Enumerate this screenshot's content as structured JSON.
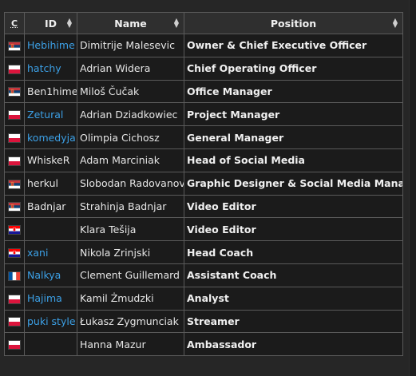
{
  "header": {
    "c": "C",
    "id": "ID",
    "name": "Name",
    "position": "Position"
  },
  "rows": [
    {
      "flag": "serbia",
      "id": "Hebihime",
      "id_link": true,
      "name": "Dimitrije Malesevic",
      "position": "Owner & Chief Executive Officer"
    },
    {
      "flag": "poland",
      "id": "hatchy",
      "id_link": true,
      "name": "Adrian Widera",
      "position": "Chief Operating Officer"
    },
    {
      "flag": "serbia",
      "id": "Ben1hime",
      "id_link": false,
      "name": "Miloš Čučak",
      "position": "Office Manager"
    },
    {
      "flag": "poland",
      "id": "Zetural",
      "id_link": true,
      "name": "Adrian Dziadkowiec",
      "position": "Project Manager"
    },
    {
      "flag": "poland",
      "id": "komedyja",
      "id_link": true,
      "name": "Olimpia Cichosz",
      "position": "General Manager"
    },
    {
      "flag": "poland",
      "id": "WhiskeR",
      "id_link": false,
      "name": "Adam Marciniak",
      "position": "Head of Social Media"
    },
    {
      "flag": "serbia",
      "id": "herkul",
      "id_link": false,
      "name": "Slobodan Radovanov",
      "position": "Graphic Designer & Social Media Manager"
    },
    {
      "flag": "serbia",
      "id": "Badnjar",
      "id_link": false,
      "name": "Strahinja Badnjar",
      "position": "Video Editor"
    },
    {
      "flag": "croatia",
      "id": "",
      "id_link": false,
      "name": "Klara Tešija",
      "position": "Video Editor"
    },
    {
      "flag": "croatia",
      "id": "xani",
      "id_link": true,
      "name": "Nikola Zrinjski",
      "position": "Head Coach"
    },
    {
      "flag": "france",
      "id": "Nalkya",
      "id_link": true,
      "name": "Clement Guillemard",
      "position": "Assistant Coach"
    },
    {
      "flag": "poland",
      "id": "Hajima",
      "id_link": true,
      "name": "Kamil Żmudzki",
      "position": "Analyst"
    },
    {
      "flag": "poland",
      "id": "puki style",
      "id_link": true,
      "name": "Łukasz Zygmunciak",
      "position": "Streamer"
    },
    {
      "flag": "poland",
      "id": "",
      "id_link": false,
      "name": "Hanna Mazur",
      "position": "Ambassador"
    }
  ],
  "colors": {
    "link": "#3ca0e6",
    "background": "#1b1b1b",
    "header": "#2f2f2f",
    "border": "#5a5a5a"
  }
}
